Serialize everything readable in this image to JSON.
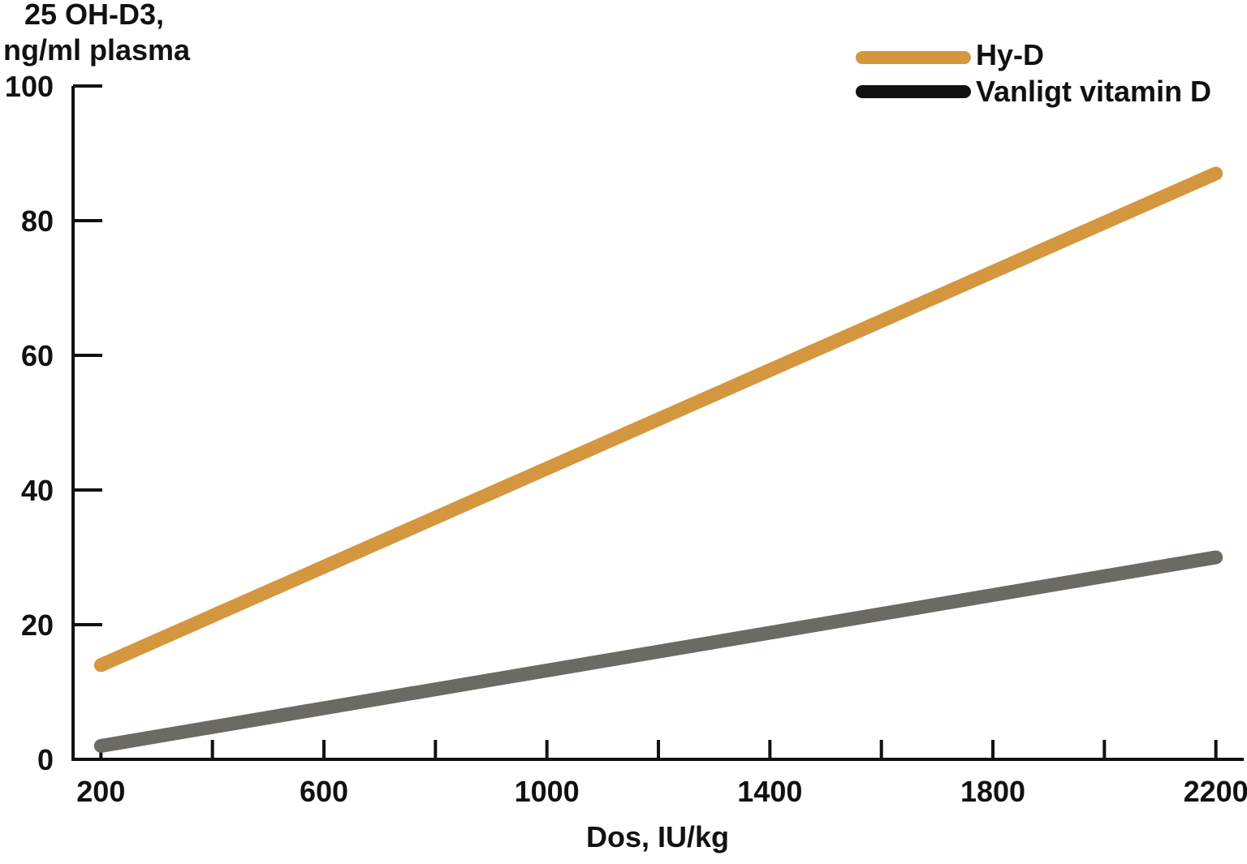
{
  "chart_data": {
    "type": "line",
    "ylabel_line1": "25 OH-D3,",
    "ylabel_line2": "ng/ml plasma",
    "xlabel": "Dos, IU/kg",
    "xlim": [
      150,
      2250
    ],
    "ylim": [
      0,
      100
    ],
    "x_tick_labels": [
      200,
      600,
      1000,
      1400,
      1800,
      2200
    ],
    "x_minor_ticks": [
      400,
      800,
      1200,
      1600,
      2000
    ],
    "y_tick_labels": [
      0,
      20,
      40,
      60,
      80,
      100
    ],
    "grid": false,
    "legend_position": "top-right",
    "series": [
      {
        "name": "Hy-D",
        "color": "#D4963E",
        "x": [
          200,
          2200
        ],
        "y": [
          14,
          87
        ]
      },
      {
        "name": "Vanligt vitamin D",
        "color": "#6B6B63",
        "legend_color": "#111111",
        "x": [
          200,
          2200
        ],
        "y": [
          2,
          30
        ]
      }
    ]
  }
}
